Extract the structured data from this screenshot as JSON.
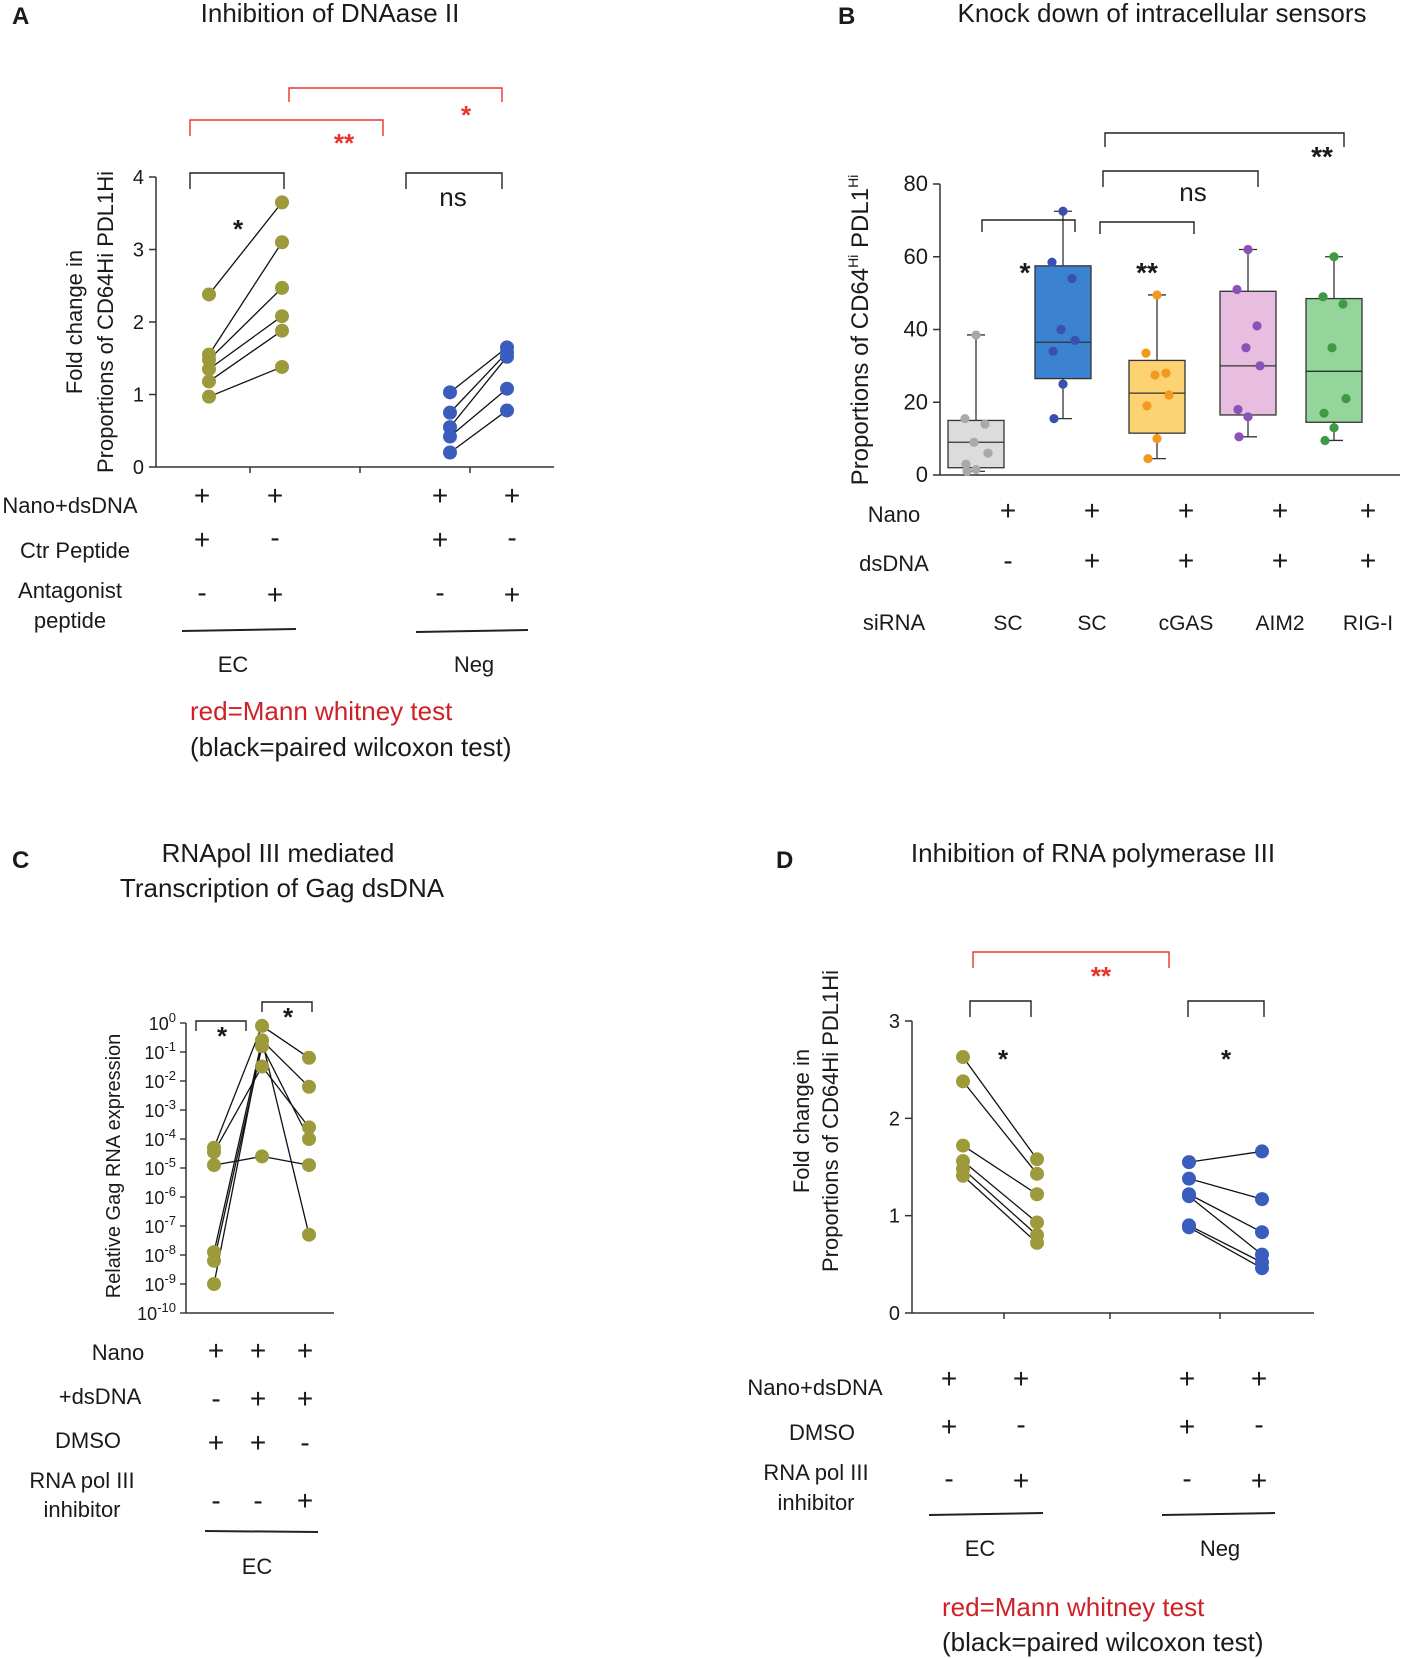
{
  "colors": {
    "olive": "#9c9a3a",
    "blue": "#3a5cbc",
    "red_sig": "#e8352b",
    "red_note": "#cf2027",
    "axis": "#333333",
    "box_gray_fill": "#dcdcdc",
    "box_gray_pt": "#a9a9a9",
    "box_blue_fill": "#3b82d0",
    "box_blue_pt": "#3950b0",
    "box_orange_fill": "#fdd273",
    "box_orange_pt": "#f39a1e",
    "box_pink_fill": "#e7bedf",
    "box_pink_pt": "#8a52b8",
    "box_green_fill": "#93d59b",
    "box_green_pt": "#3e9a43"
  },
  "chart_data": [
    {
      "panel": "A",
      "type": "scatter",
      "title": "Inhibition of DNAase II",
      "ylabel": [
        "Fold change in",
        "Proportions of CD64Hi PDL1Hi"
      ],
      "ylim": [
        0,
        4
      ],
      "yticks": [
        "0",
        "1",
        "2",
        "3",
        "4"
      ],
      "groups": [
        {
          "name": "EC",
          "color": "olive",
          "pairs": [
            [
              2.38,
              3.65
            ],
            [
              1.55,
              3.1
            ],
            [
              1.48,
              2.47
            ],
            [
              1.35,
              2.08
            ],
            [
              1.18,
              1.88
            ],
            [
              0.97,
              1.38
            ]
          ]
        },
        {
          "name": "Neg",
          "color": "blue",
          "pairs": [
            [
              1.03,
              1.65
            ],
            [
              0.75,
              1.58
            ],
            [
              0.55,
              1.52
            ],
            [
              0.42,
              1.08
            ],
            [
              0.2,
              0.78
            ]
          ]
        }
      ],
      "sig": [
        {
          "label": "*",
          "color": "black"
        },
        {
          "label": "ns",
          "color": "black"
        },
        {
          "label": "**",
          "color": "red"
        },
        {
          "label": "*",
          "color": "red"
        }
      ],
      "conditions": [
        {
          "label": "Nano+dsDNA",
          "values": [
            "+",
            "+",
            "+",
            "+"
          ]
        },
        {
          "label": "Ctr Peptide",
          "values": [
            "+",
            "-",
            "+",
            "-"
          ]
        },
        {
          "label": [
            "Antagonist",
            "peptide"
          ],
          "values": [
            "-",
            "+",
            "-",
            "+"
          ]
        }
      ],
      "group_labels": [
        "EC",
        "Neg"
      ],
      "notes": [
        "red=Mann whitney test",
        "(black=paired wilcoxon test)"
      ]
    },
    {
      "panel": "B",
      "type": "box",
      "title": "Knock down of intracellular sensors",
      "ylabel": "Proportions of CD64",
      "ylabel_sup1": "Hi",
      "ylabel_mid": " PDL1",
      "ylabel_sup2": "Hi",
      "ylim": [
        0,
        80
      ],
      "yticks": [
        "0",
        "20",
        "40",
        "60",
        "80"
      ],
      "boxes": [
        {
          "name": "SC (no dsDNA)",
          "fill": "box_gray_fill",
          "pt": "box_gray_pt",
          "min": 1,
          "q1": 2,
          "median": 9,
          "q3": 15,
          "max": 38.5,
          "points": [
            38.5,
            15.5,
            14,
            9,
            6,
            3,
            1.5,
            1
          ]
        },
        {
          "name": "SC",
          "fill": "box_blue_fill",
          "pt": "box_blue_pt",
          "min": 15.5,
          "q1": 26.5,
          "median": 36.5,
          "q3": 57.5,
          "max": 72.5,
          "points": [
            72.5,
            58.5,
            54,
            40,
            37,
            34,
            25,
            15.5
          ]
        },
        {
          "name": "cGAS",
          "fill": "box_orange_fill",
          "pt": "box_orange_pt",
          "min": 4.5,
          "q1": 11.5,
          "median": 22.5,
          "q3": 31.5,
          "max": 49.5,
          "points": [
            49.5,
            33.5,
            28,
            27.5,
            22,
            19,
            10,
            4.5
          ]
        },
        {
          "name": "AIM2",
          "fill": "box_pink_fill",
          "pt": "box_pink_pt",
          "min": 10.5,
          "q1": 16.5,
          "median": 30,
          "q3": 50.5,
          "max": 62,
          "points": [
            62,
            51,
            41,
            35,
            30,
            18,
            16,
            10.5
          ]
        },
        {
          "name": "RIG-I",
          "fill": "box_green_fill",
          "pt": "box_green_pt",
          "min": 9.5,
          "q1": 14.5,
          "median": 28.5,
          "q3": 48.5,
          "max": 60,
          "points": [
            60,
            49,
            47,
            35,
            21,
            17,
            13,
            9.5
          ]
        }
      ],
      "sig": [
        {
          "label": "*"
        },
        {
          "label": "**"
        },
        {
          "label": "ns"
        },
        {
          "label": "**"
        }
      ],
      "conditions": [
        {
          "label": "Nano",
          "values": [
            "+",
            "+",
            "+",
            "+",
            "+"
          ]
        },
        {
          "label": "dsDNA",
          "values": [
            "-",
            "+",
            "+",
            "+",
            "+"
          ]
        },
        {
          "label": "siRNA",
          "values": [
            "SC",
            "SC",
            "cGAS",
            "AIM2",
            "RIG-I"
          ]
        }
      ]
    },
    {
      "panel": "C",
      "type": "scatter",
      "title": [
        "RNApol III mediated",
        "Transcription of Gag dsDNA"
      ],
      "ylabel": "Relative Gag RNA expression",
      "yscale": "log",
      "ylim_exp": [
        -10,
        0
      ],
      "yticks": [
        {
          "base": "10",
          "exp": "0"
        },
        {
          "base": "10",
          "exp": "-1"
        },
        {
          "base": "10",
          "exp": "-2"
        },
        {
          "base": "10",
          "exp": "-3"
        },
        {
          "base": "10",
          "exp": "-4"
        },
        {
          "base": "10",
          "exp": "-5"
        },
        {
          "base": "10",
          "exp": "-6"
        },
        {
          "base": "10",
          "exp": "-7"
        },
        {
          "base": "10",
          "exp": "-8"
        },
        {
          "base": "10",
          "exp": "-9"
        },
        {
          "base": "10",
          "exp": "-10"
        }
      ],
      "color": "olive",
      "series_exp": [
        [
          -4.3,
          -0.1,
          -1.2
        ],
        [
          -4.45,
          -1.5,
          -3.6
        ],
        [
          -4.9,
          -4.6,
          -4.9
        ],
        [
          -7.9,
          -0.6,
          -2.2
        ],
        [
          -8.2,
          -0.8,
          -4.0
        ],
        [
          -9.0,
          -0.6,
          -7.3
        ]
      ],
      "sig": [
        {
          "label": "*"
        },
        {
          "label": "*"
        }
      ],
      "conditions": [
        {
          "label": "Nano",
          "values": [
            "+",
            "+",
            "+"
          ]
        },
        {
          "label": "+dsDNA",
          "values": [
            "-",
            "+",
            "+"
          ]
        },
        {
          "label": "DMSO",
          "values": [
            "+",
            "+",
            "-"
          ]
        },
        {
          "label": [
            "RNA pol III",
            "inhibitor"
          ],
          "values": [
            "-",
            "-",
            "+"
          ]
        }
      ],
      "group_labels": [
        "EC"
      ]
    },
    {
      "panel": "D",
      "type": "scatter",
      "title": "Inhibition of RNA polymerase III",
      "ylabel": [
        "Fold change in",
        "Proportions of CD64Hi PDL1Hi"
      ],
      "ylim": [
        0,
        3
      ],
      "yticks": [
        "0",
        "1",
        "2",
        "3"
      ],
      "groups": [
        {
          "name": "EC",
          "color": "olive",
          "pairs": [
            [
              2.63,
              1.58
            ],
            [
              2.38,
              1.43
            ],
            [
              1.72,
              1.22
            ],
            [
              1.56,
              0.93
            ],
            [
              1.48,
              0.8
            ],
            [
              1.41,
              0.72
            ]
          ]
        },
        {
          "name": "Neg",
          "color": "blue",
          "pairs": [
            [
              1.55,
              1.66
            ],
            [
              1.38,
              1.17
            ],
            [
              1.22,
              0.83
            ],
            [
              1.2,
              0.6
            ],
            [
              0.9,
              0.52
            ],
            [
              0.88,
              0.46
            ]
          ]
        }
      ],
      "sig": [
        {
          "label": "*",
          "color": "black"
        },
        {
          "label": "*",
          "color": "black"
        },
        {
          "label": "**",
          "color": "red"
        }
      ],
      "conditions": [
        {
          "label": "Nano+dsDNA",
          "values": [
            "+",
            "+",
            "+",
            "+"
          ]
        },
        {
          "label": "DMSO",
          "values": [
            "+",
            "-",
            "+",
            "-"
          ]
        },
        {
          "label": [
            "RNA pol III",
            "inhibitor"
          ],
          "values": [
            "-",
            "+",
            "-",
            "+"
          ]
        }
      ],
      "group_labels": [
        "EC",
        "Neg"
      ],
      "notes": [
        "red=Mann whitney test",
        "(black=paired wilcoxon test)"
      ]
    }
  ],
  "panel_letters": [
    "A",
    "B",
    "C",
    "D"
  ]
}
